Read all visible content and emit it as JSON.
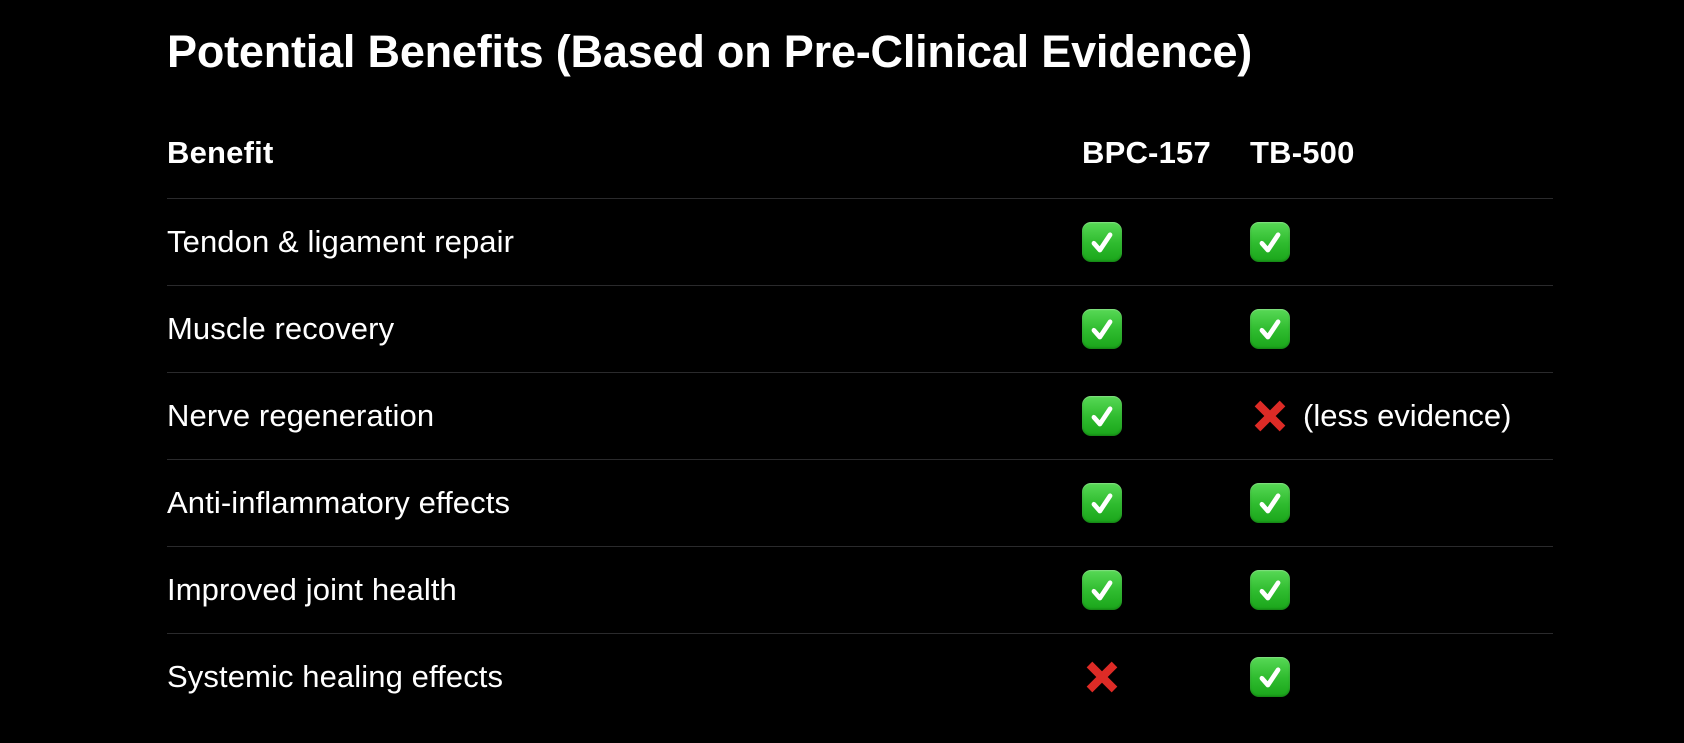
{
  "page": {
    "title": "Potential Benefits (Based on Pre-Clinical Evidence)"
  },
  "colors": {
    "background": "#000000",
    "text": "#ffffff",
    "divider": "#2a2a2c",
    "check_green_top": "#58d956",
    "check_green_bottom": "#1aa51a",
    "check_glyph": "#ffffff",
    "cross_red": "#dd2b26"
  },
  "table": {
    "header": {
      "benefit": "Benefit",
      "bpc157": "BPC-157",
      "tb500": "TB-500"
    },
    "rows": [
      {
        "benefit": "Tendon & ligament repair",
        "bpc157": "check",
        "tb500": "check",
        "tb500_note": ""
      },
      {
        "benefit": "Muscle recovery",
        "bpc157": "check",
        "tb500": "check",
        "tb500_note": ""
      },
      {
        "benefit": "Nerve regeneration",
        "bpc157": "check",
        "tb500": "cross",
        "tb500_note": "(less evidence)"
      },
      {
        "benefit": "Anti-inflammatory effects",
        "bpc157": "check",
        "tb500": "check",
        "tb500_note": ""
      },
      {
        "benefit": "Improved joint health",
        "bpc157": "check",
        "tb500": "check",
        "tb500_note": ""
      },
      {
        "benefit": "Systemic healing effects",
        "bpc157": "cross",
        "tb500": "check",
        "tb500_note": ""
      }
    ]
  }
}
